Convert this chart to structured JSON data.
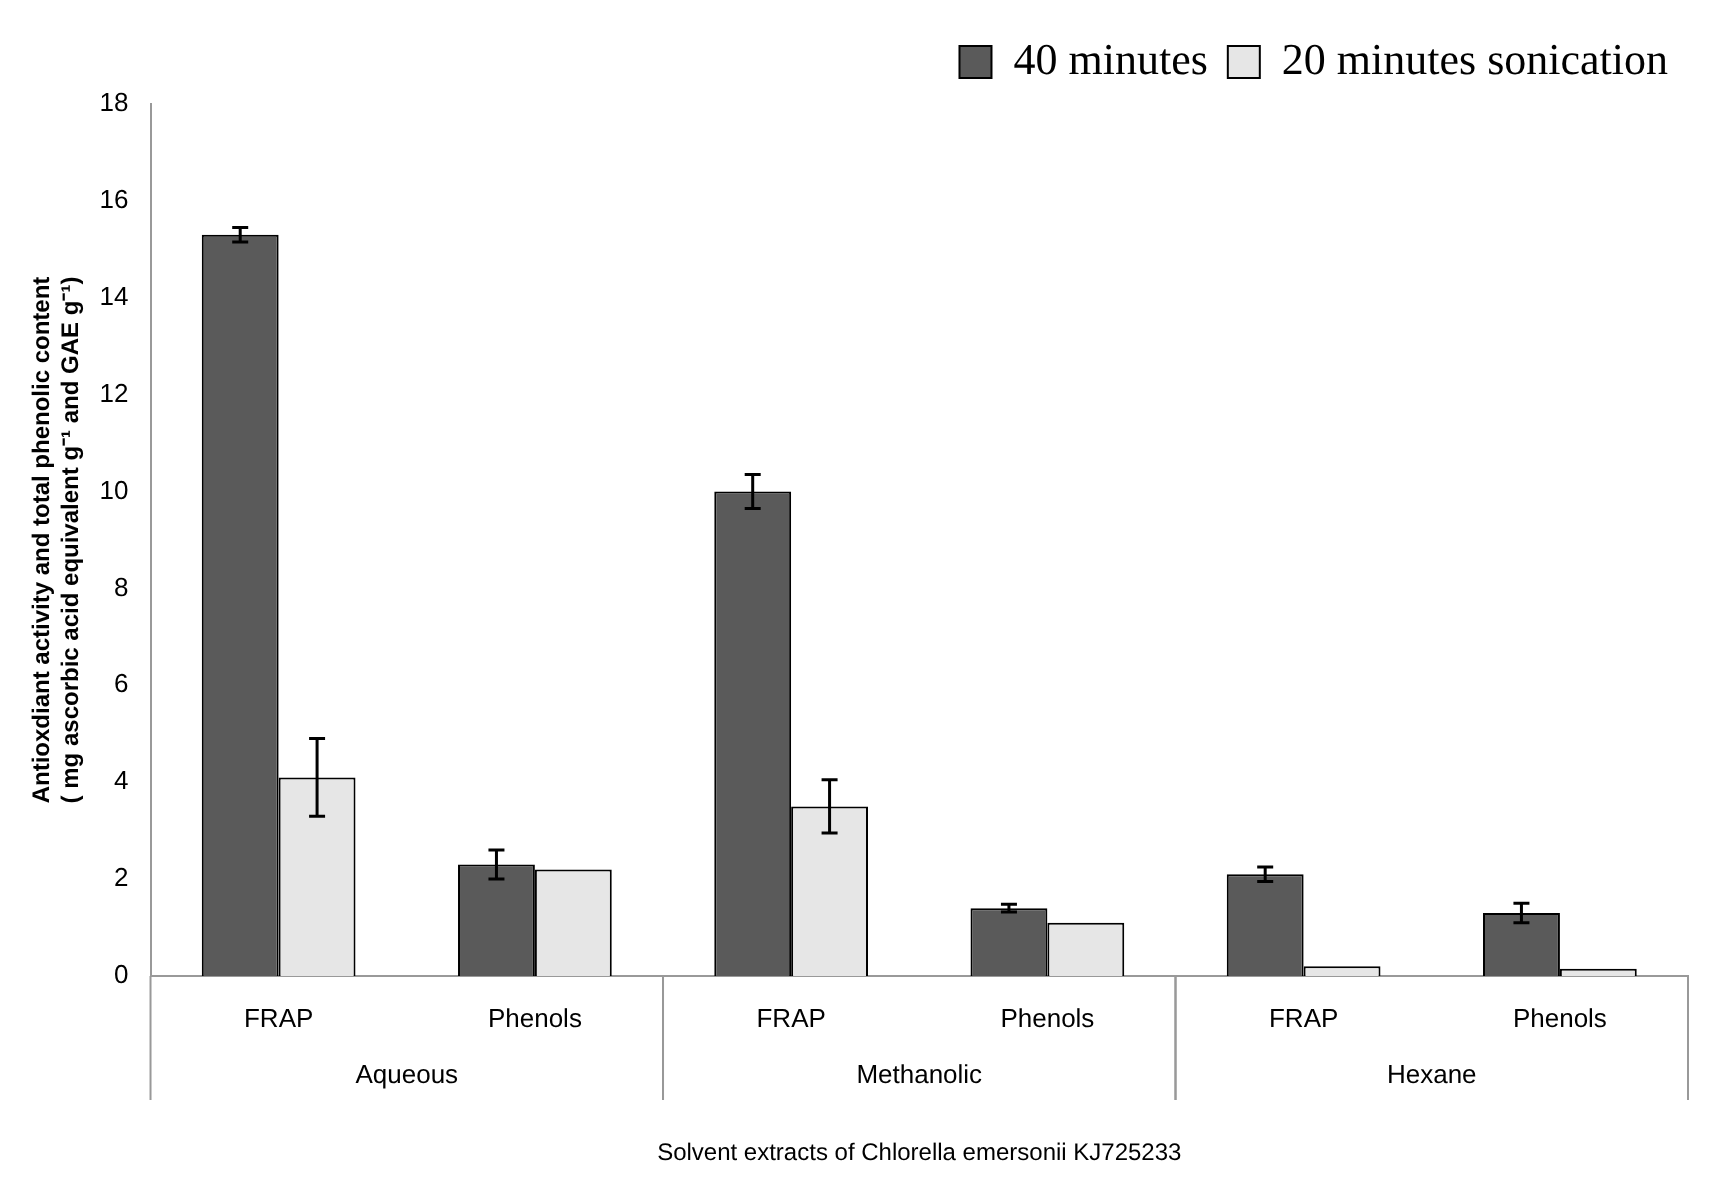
{
  "chart_data": {
    "type": "bar",
    "xlabel": "Solvent extracts of Chlorella emersonii KJ725233",
    "ylabel": "Antioxdiant activity and total phenolic content\n( mg ascorbic acid equivalent g⁻¹ and GAE g⁻¹)",
    "categories": [
      "FRAP",
      "Phenols",
      "FRAP",
      "Phenols",
      "FRAP",
      "Phenols"
    ],
    "annotations": [
      "Aqueous",
      "Methanolic",
      "Hexane"
    ],
    "series": [
      {
        "name": "40 minutes",
        "color": "#5a5a5a",
        "values": [
          15.3,
          2.3,
          10.0,
          1.4,
          2.1,
          1.3
        ],
        "errors": [
          0.15,
          0.3,
          0.35,
          0.08,
          0.15,
          0.2
        ]
      },
      {
        "name": "20 minutes sonication",
        "color": "#e6e6e6",
        "values": [
          4.1,
          2.2,
          3.5,
          1.1,
          0.2,
          0.15
        ],
        "errors": [
          0.8,
          null,
          0.55,
          null,
          null,
          null
        ]
      }
    ],
    "ylim": [
      0,
      18
    ],
    "yticks": [
      0,
      2,
      4,
      6,
      8,
      10,
      12,
      14,
      16,
      18
    ],
    "grid": false,
    "legend": "top right"
  }
}
